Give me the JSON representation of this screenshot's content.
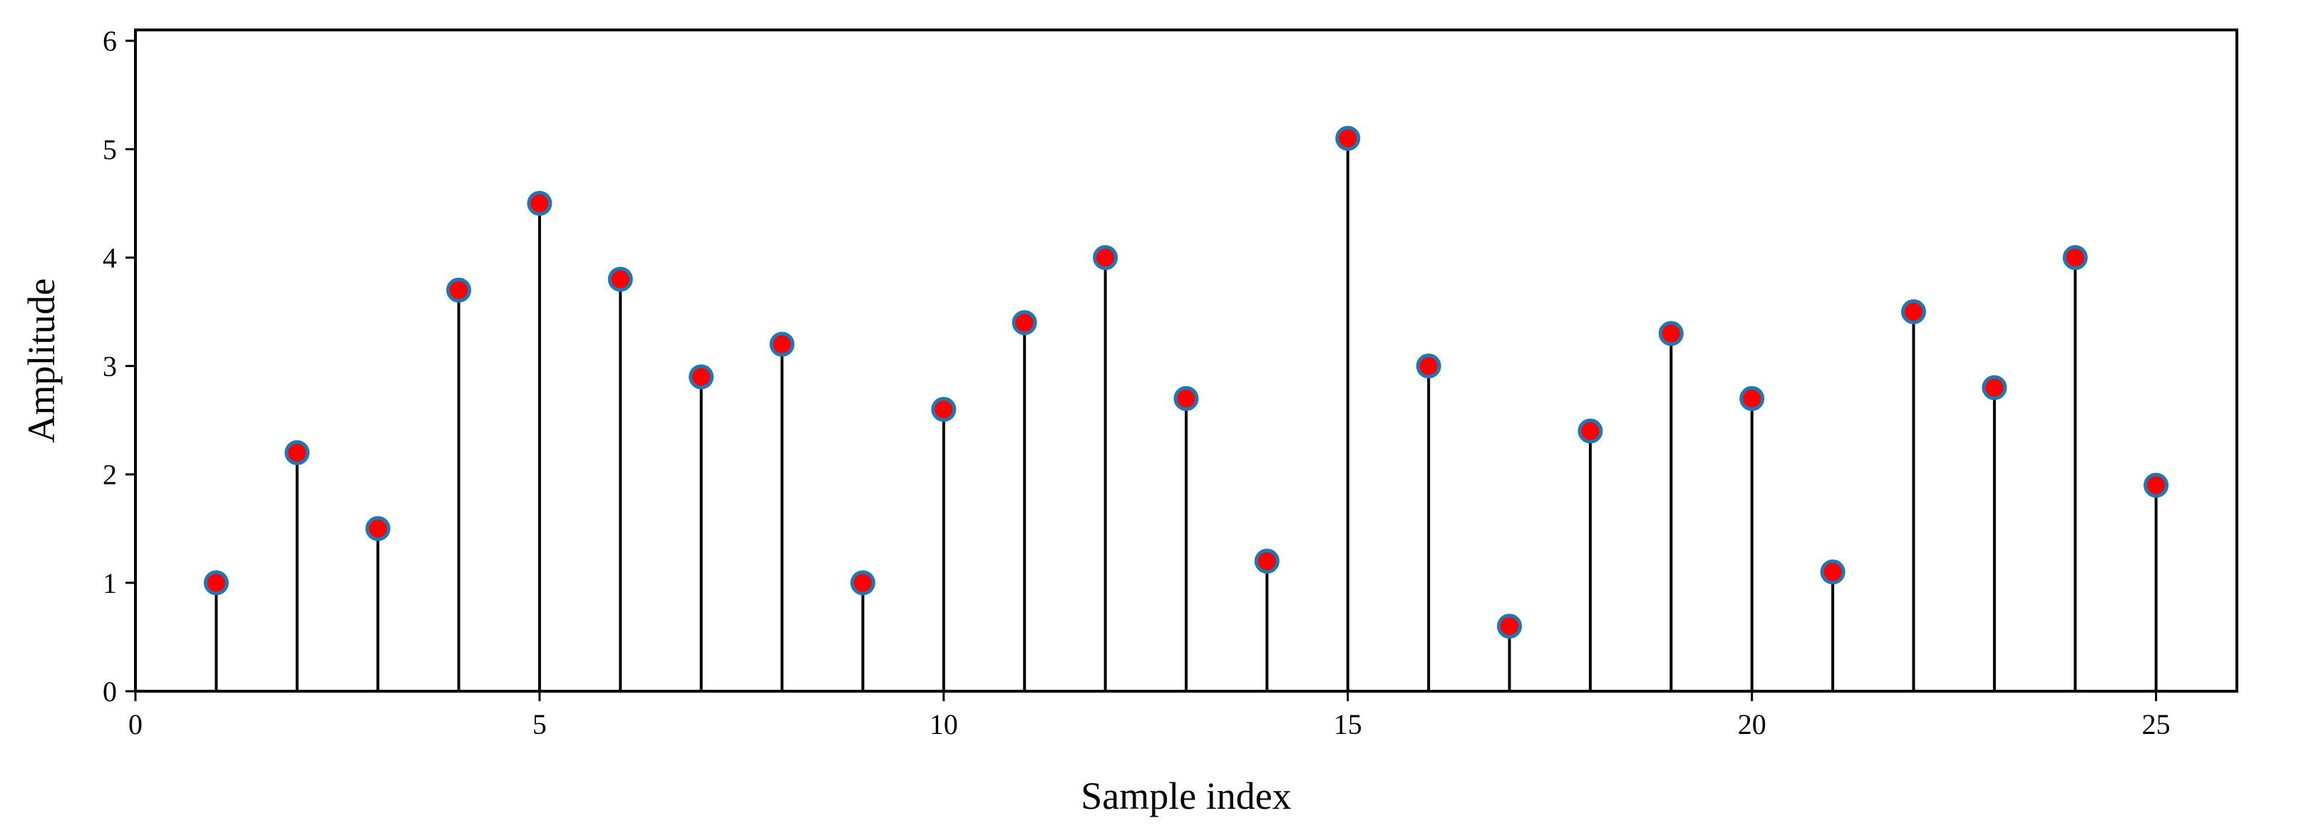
{
  "chart_data": {
    "type": "stem",
    "xlabel": "Sample index",
    "ylabel": "Amplitude",
    "xlim": [
      0,
      26
    ],
    "ylim": [
      0,
      6.1
    ],
    "xticks": [
      0,
      5,
      10,
      15,
      20,
      25
    ],
    "yticks": [
      0,
      1,
      2,
      3,
      4,
      5,
      6
    ],
    "grid": false,
    "x": [
      1,
      2,
      3,
      4,
      5,
      6,
      7,
      8,
      9,
      10,
      11,
      12,
      13,
      14,
      15,
      16,
      17,
      18,
      19,
      20,
      21,
      22,
      23,
      24,
      25
    ],
    "values": [
      1.0,
      2.2,
      1.5,
      3.7,
      4.5,
      3.8,
      2.9,
      3.2,
      1.0,
      2.6,
      3.4,
      4.0,
      2.7,
      1.2,
      5.1,
      3.0,
      0.6,
      2.4,
      3.3,
      2.7,
      1.1,
      3.5,
      2.8,
      4.0,
      1.9
    ],
    "colors": {
      "stem": "#000000",
      "marker_fill": "#ff0000",
      "marker_edge": "#1f77b4",
      "axes": "#000000"
    }
  }
}
